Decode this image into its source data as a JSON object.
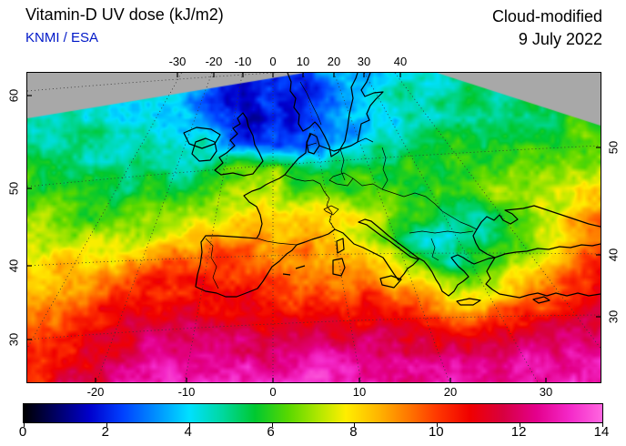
{
  "header": {
    "title": "Vitamin-D UV dose (kJ/m2)",
    "credit": "KNMI / ESA",
    "mode": "Cloud-modified",
    "date": "9 July 2022"
  },
  "chart_data": {
    "type": "heatmap",
    "title": "Vitamin-D UV dose (kJ/m2)",
    "source": "KNMI / ESA",
    "mode": "Cloud-modified",
    "date": "9 July 2022",
    "value_range": [
      0,
      14
    ],
    "unit": "kJ/m2",
    "axes": {
      "top_lon_ticks": [
        "-30",
        "-20",
        "-10",
        "0",
        "10",
        "20",
        "30",
        "40"
      ],
      "bottom_lon_ticks": [
        "-20",
        "-10",
        "0",
        "10",
        "20",
        "30"
      ],
      "left_lat_ticks": [
        "60",
        "50",
        "40",
        "30"
      ],
      "right_lat_ticks": [
        "50",
        "40",
        "30"
      ]
    },
    "colorbar_ticks": [
      "0",
      "2",
      "4",
      "6",
      "8",
      "10",
      "12",
      "14"
    ],
    "nodata_color": "#a8a8a8",
    "colormap": [
      [
        0,
        "#000000"
      ],
      [
        0.8,
        "#000066"
      ],
      [
        1.6,
        "#0000cc"
      ],
      [
        2.4,
        "#0040ff"
      ],
      [
        3.2,
        "#0090ff"
      ],
      [
        4,
        "#00e0ff"
      ],
      [
        4.8,
        "#00d8a0"
      ],
      [
        5.6,
        "#00c830"
      ],
      [
        6.4,
        "#58d800"
      ],
      [
        7.2,
        "#b8e800"
      ],
      [
        7.8,
        "#ffee00"
      ],
      [
        8.6,
        "#ffb400"
      ],
      [
        9.3,
        "#ff7800"
      ],
      [
        10,
        "#ff3800"
      ],
      [
        10.8,
        "#f00000"
      ],
      [
        11.6,
        "#d80040"
      ],
      [
        12.4,
        "#e4008c"
      ],
      [
        13.2,
        "#f428c8"
      ],
      [
        14,
        "#ff66e0"
      ]
    ],
    "grid": [
      [
        4,
        4,
        4,
        4,
        4,
        4,
        4,
        3,
        2.5,
        2,
        2,
        2.5,
        3.5,
        3,
        4,
        4.5,
        4,
        4.5,
        5,
        5,
        5,
        5,
        5.2,
        5.2
      ],
      [
        4.5,
        4.5,
        4.5,
        4.5,
        4.5,
        4.5,
        4,
        3,
        2,
        1.8,
        2,
        2,
        2.5,
        3.5,
        4.5,
        5,
        4.5,
        5,
        5,
        5,
        5,
        5.5,
        5.5,
        5.5
      ],
      [
        5,
        4.8,
        4.5,
        4.5,
        4.2,
        4,
        3.8,
        3.2,
        2.2,
        1.8,
        2,
        2.2,
        2.8,
        3.2,
        4,
        4.2,
        4.5,
        5,
        5.2,
        5.5,
        5.5,
        5.5,
        6,
        6
      ],
      [
        5.2,
        5,
        5,
        4.8,
        4.5,
        4.5,
        4.2,
        4.5,
        3,
        2.2,
        2.5,
        3,
        3.2,
        3.8,
        4.5,
        5,
        5.5,
        5.5,
        5.5,
        6,
        6,
        6,
        6.5,
        6.5
      ],
      [
        5.5,
        5.5,
        5.2,
        5,
        5,
        5,
        5,
        5.2,
        6,
        6.5,
        6.5,
        5.5,
        5,
        5.5,
        6,
        6,
        6,
        5.5,
        6,
        6.5,
        6.5,
        7,
        7,
        7
      ],
      [
        6,
        5.8,
        5.5,
        5.5,
        5.5,
        5.8,
        6,
        6.2,
        6.5,
        7,
        7,
        6.5,
        6.5,
        6.5,
        6.5,
        6,
        6,
        6,
        6.5,
        7,
        7.5,
        7.5,
        8,
        8
      ],
      [
        6.5,
        6.5,
        6.2,
        6,
        6.5,
        6.8,
        7,
        7,
        7.5,
        8,
        8.5,
        8.5,
        8,
        7.5,
        7,
        6.5,
        5.5,
        4.5,
        5,
        5.5,
        6.5,
        7.5,
        8.5,
        9.5
      ],
      [
        7,
        7,
        7,
        7.5,
        7.5,
        7.5,
        8,
        8.5,
        9,
        9,
        9,
        9,
        8.5,
        8,
        7,
        5.5,
        4.5,
        4,
        5,
        5.5,
        6.5,
        8,
        9,
        10
      ],
      [
        7.5,
        8,
        8.5,
        8,
        8.5,
        9,
        9.5,
        10,
        10,
        10,
        9.5,
        9.5,
        9,
        9,
        8.5,
        7.5,
        6,
        5,
        6,
        6.5,
        7.5,
        8.5,
        9.5,
        10.5
      ],
      [
        8,
        8.5,
        9,
        9.5,
        10,
        10.5,
        10.5,
        10.5,
        10.5,
        10.5,
        10,
        10,
        9.5,
        9.5,
        9.5,
        9,
        8,
        7,
        7,
        8,
        8.5,
        9,
        10,
        11
      ],
      [
        9,
        9.5,
        10,
        10.5,
        11,
        11,
        11,
        11,
        11,
        11,
        10.5,
        10.5,
        10.5,
        10.5,
        10.5,
        10,
        9.5,
        9,
        9,
        9.5,
        10,
        10.5,
        11,
        11.5
      ],
      [
        9.5,
        10,
        10.5,
        11,
        11.5,
        12,
        12,
        12,
        12,
        11.5,
        11.5,
        11.5,
        11.5,
        11.5,
        11.5,
        11,
        11,
        10.5,
        10.5,
        11,
        11,
        11.5,
        12,
        12
      ],
      [
        10,
        10.5,
        11,
        11.5,
        12,
        12.5,
        12.5,
        12.5,
        12.5,
        12.5,
        12.5,
        12.5,
        12.5,
        12.5,
        12.5,
        12,
        12,
        12,
        12,
        12,
        12.5,
        12.5,
        12.5,
        13
      ],
      [
        10.5,
        11,
        11.5,
        12,
        12.5,
        13,
        13,
        13,
        13,
        13,
        13,
        13,
        13,
        13,
        13,
        12.5,
        12.5,
        12.5,
        12.5,
        12.5,
        13,
        13,
        13,
        13
      ]
    ]
  }
}
